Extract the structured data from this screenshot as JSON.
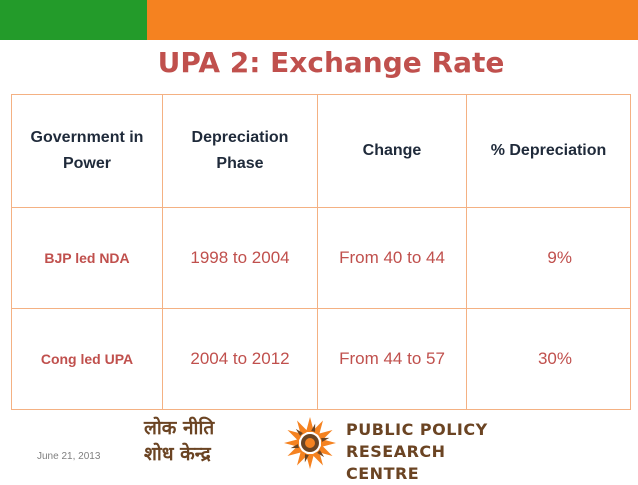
{
  "slide": {
    "title": "UPA 2: Exchange Rate",
    "date": "June 21, 2013"
  },
  "table": {
    "headers": {
      "government": "Government in Power",
      "phase": "Depreciation Phase",
      "change": "Change",
      "pct": "% Depreciation"
    },
    "rows": [
      {
        "government": "BJP led NDA",
        "phase": "1998 to 2004",
        "change": "From 40 to 44",
        "pct": "9%"
      },
      {
        "government": "Cong led UPA",
        "phase": "2004 to 2012",
        "change": "From 44 to 57",
        "pct": "30%"
      }
    ]
  },
  "logo": {
    "hindi_line1": "लोक नीति",
    "hindi_line2": "शोध केन्द्र",
    "english_line1": "PUBLIC POLICY",
    "english_line2": "RESEARCH CENTRE",
    "icon": "sun-emblem-icon"
  },
  "colors": {
    "green_bar": "#239b2a",
    "orange_bar": "#f58220",
    "title": "#c0504d",
    "table_border": "#f4b183",
    "logo_brown": "#6b4423"
  }
}
